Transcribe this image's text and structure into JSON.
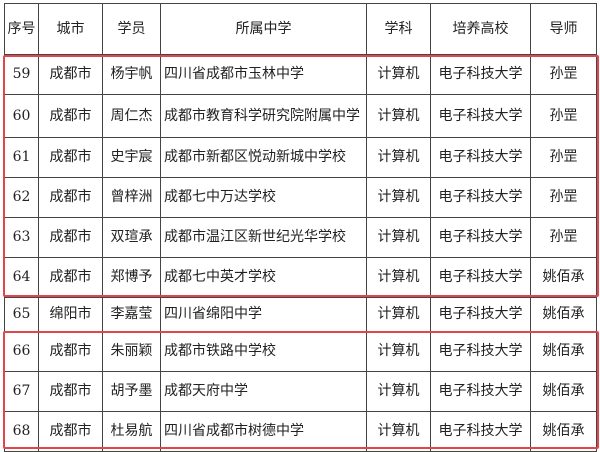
{
  "headers": [
    "序号",
    "城市",
    "学员",
    "所属中学",
    "学科",
    "培养高校",
    "导师"
  ],
  "rows": [
    [
      "59",
      "成都市",
      "杨宇帆",
      "四川省成都市玉林中学",
      "计算机",
      "电子科技大学",
      "孙罡"
    ],
    [
      "60",
      "成都市",
      "周仁杰",
      "成都市教育科学研究院附属中学",
      "计算机",
      "电子科技大学",
      "孙罡"
    ],
    [
      "61",
      "成都市",
      "史宇宸",
      "成都市新都区悦动新城中学校",
      "计算机",
      "电子科技大学",
      "孙罡"
    ],
    [
      "62",
      "成都市",
      "曾梓洲",
      "成都七中万达学校",
      "计算机",
      "电子科技大学",
      "孙罡"
    ],
    [
      "63",
      "成都市",
      "双瑄承",
      "成都市温江区新世纪光华学校",
      "计算机",
      "电子科技大学",
      "孙罡"
    ],
    [
      "64",
      "成都市",
      "郑博予",
      "成都七中英才学校",
      "计算机",
      "电子科技大学",
      "姚佰承"
    ],
    [
      "65",
      "绵阳市",
      "李嘉莹",
      "四川省绵阳中学",
      "计算机",
      "电子科技大学",
      "姚佰承"
    ],
    [
      "66",
      "成都市",
      "朱丽颖",
      "成都市铁路中学校",
      "计算机",
      "电子科技大学",
      "姚佰承"
    ],
    [
      "67",
      "成都市",
      "胡予墨",
      "成都天府中学",
      "计算机",
      "电子科技大学",
      "姚佰承"
    ],
    [
      "68",
      "成都市",
      "杜易航",
      "四川省成都市树德中学",
      "计算机",
      "电子科技大学",
      "姚佰承"
    ]
  ],
  "highlight_color": "#e0474c"
}
